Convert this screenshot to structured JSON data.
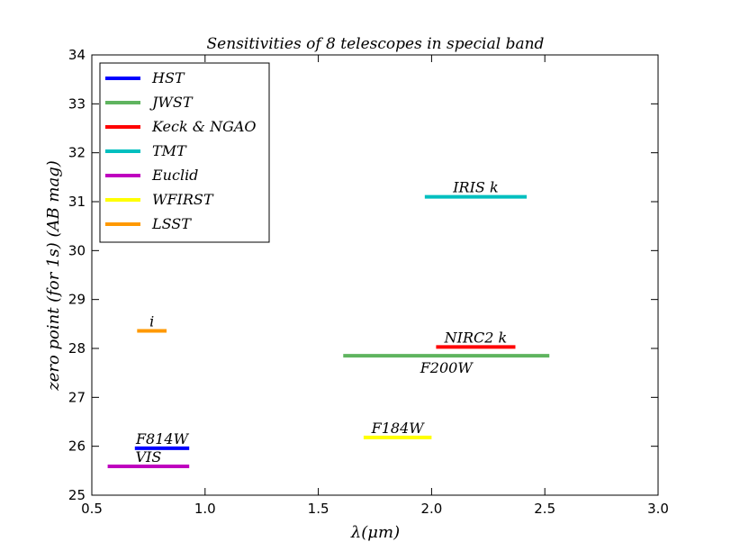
{
  "chart_data": {
    "type": "line",
    "title": "Sensitivities of 8 telescopes in special band",
    "xlabel": "λ(μm)",
    "ylabel": "zero point (for 1s) (AB mag)",
    "xlim": [
      0.5,
      3.0
    ],
    "ylim": [
      25,
      34
    ],
    "xticks": [
      "0.5",
      "1.0",
      "1.5",
      "2.0",
      "2.5",
      "3.0"
    ],
    "yticks": [
      "25",
      "26",
      "27",
      "28",
      "29",
      "30",
      "31",
      "32",
      "33",
      "34"
    ],
    "grid": false,
    "legend_position": "top-left",
    "series": [
      {
        "name": "HST",
        "color": "#0000ff",
        "bands": [
          {
            "label": "F814W",
            "x": [
              0.69,
              0.93
            ],
            "y": 25.96,
            "label_pos": "above"
          }
        ]
      },
      {
        "name": "JWST",
        "color": "#5fb45f",
        "bands": [
          {
            "label": "F200W",
            "x": [
              1.61,
              2.52
            ],
            "y": 27.85,
            "label_pos": "below"
          }
        ]
      },
      {
        "name": "Keck & NGAO",
        "color": "#ff0000",
        "bands": [
          {
            "label": "NIRC2 k",
            "x": [
              2.02,
              2.37
            ],
            "y": 28.03,
            "label_pos": "above"
          }
        ]
      },
      {
        "name": "TMT",
        "color": "#00bfbf",
        "bands": [
          {
            "label": "IRIS k",
            "x": [
              1.97,
              2.42
            ],
            "y": 31.1,
            "label_pos": "above"
          }
        ]
      },
      {
        "name": "Euclid",
        "color": "#bf00bf",
        "bands": [
          {
            "label": "VIS",
            "x": [
              0.57,
              0.93
            ],
            "y": 25.59,
            "label_pos": "above"
          }
        ]
      },
      {
        "name": "WFIRST",
        "color": "#ffff00",
        "bands": [
          {
            "label": "F184W",
            "x": [
              1.7,
              2.0
            ],
            "y": 26.18,
            "label_pos": "above"
          }
        ]
      },
      {
        "name": "LSST",
        "color": "#ff9900",
        "bands": [
          {
            "label": "i",
            "x": [
              0.7,
              0.83
            ],
            "y": 28.36,
            "label_pos": "above"
          }
        ]
      }
    ]
  }
}
